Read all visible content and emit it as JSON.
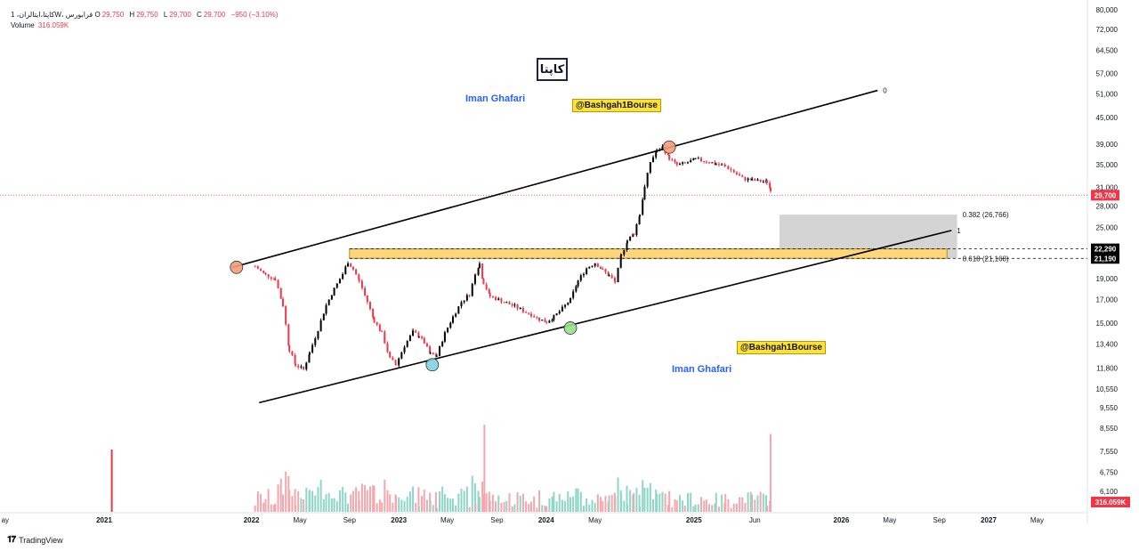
{
  "header": {
    "symbol": "کاپتا،ایتالران، 1W، فرابورس",
    "ohlc": [
      {
        "label": "O",
        "value": "29,750"
      },
      {
        "label": "H",
        "value": "29,750"
      },
      {
        "label": "L",
        "value": "29,700"
      },
      {
        "label": "C",
        "value": "29,700"
      }
    ],
    "change": "−950 (−3.10%)",
    "volume_label": "Volume",
    "volume_value": "316.059K"
  },
  "logo_text": "کاپتا",
  "watermarks": [
    "@Bashgah1Bourse",
    "@Bashgah1Bourse"
  ],
  "authors": [
    "Iman Ghafari",
    "Iman Ghafari"
  ],
  "footer": {
    "brand": "TradingView"
  },
  "colors": {
    "up": "#000000",
    "down": "#f23645",
    "vol_up": "#8fd6c8",
    "vol_down": "#f4a8ae",
    "channel": "#000000",
    "zone": "#ffd77a",
    "fib_box": "#c9c9c9",
    "price_tag": "#f23645"
  },
  "chart_data": {
    "type": "candlestick",
    "scale": "log",
    "price_axis": {
      "ticks": [
        80000,
        72000,
        64500,
        57000,
        51000,
        45000,
        39000,
        35000,
        31000,
        28000,
        25000,
        22290,
        21190,
        19000,
        17000,
        15000,
        13400,
        11800,
        10550,
        9550,
        8550,
        7550,
        6750,
        6100
      ],
      "tick_labels": [
        "80,000",
        "72,000",
        "64,500",
        "57,000",
        "51,000",
        "45,000",
        "39,000",
        "35,000",
        "31,000",
        "28,000",
        "25,000",
        "22,290",
        "21,190",
        "19,000",
        "17,000",
        "15,000",
        "13,400",
        "11,800",
        "10,550",
        "9,550",
        "8,550",
        "7,550",
        "6,750",
        "6,100"
      ],
      "last_price": "29,700",
      "last_volume": "316.059K",
      "zone_labels": [
        "22,290",
        "21,190"
      ]
    },
    "time_axis": {
      "labels": [
        "ay",
        "2021",
        "2022",
        "May",
        "Sep",
        "2023",
        "May",
        "Sep",
        "2024",
        "May",
        "2025",
        "Jun",
        "2026",
        "May",
        "Sep",
        "2027",
        "May"
      ],
      "dates": [
        "2020-05-01",
        "2021-01-01",
        "2022-01-01",
        "2022-05-01",
        "2022-09-01",
        "2023-01-01",
        "2023-05-01",
        "2023-09-01",
        "2024-01-01",
        "2024-05-01",
        "2025-01-01",
        "2025-06-01",
        "2026-01-01",
        "2026-05-01",
        "2026-09-01",
        "2027-01-01",
        "2027-05-01"
      ]
    },
    "price_path": [
      [
        "2022-01-10",
        20300
      ],
      [
        "2022-02-05",
        19400
      ],
      [
        "2022-03-01",
        19000
      ],
      [
        "2022-03-20",
        16500
      ],
      [
        "2022-04-05",
        13000
      ],
      [
        "2022-04-20",
        12000
      ],
      [
        "2022-05-10",
        11700
      ],
      [
        "2022-05-25",
        12800
      ],
      [
        "2022-06-15",
        14500
      ],
      [
        "2022-07-05",
        16500
      ],
      [
        "2022-07-25",
        18000
      ],
      [
        "2022-08-15",
        19500
      ],
      [
        "2022-08-28",
        20800
      ],
      [
        "2022-09-10",
        20000
      ],
      [
        "2022-09-25",
        18800
      ],
      [
        "2022-10-15",
        16800
      ],
      [
        "2022-11-01",
        15200
      ],
      [
        "2022-11-20",
        14200
      ],
      [
        "2022-12-10",
        12400
      ],
      [
        "2022-12-25",
        12000
      ],
      [
        "2023-01-15",
        13300
      ],
      [
        "2023-02-05",
        14300
      ],
      [
        "2023-02-20",
        14000
      ],
      [
        "2023-03-05",
        13500
      ],
      [
        "2023-03-20",
        12700
      ],
      [
        "2023-04-05",
        12600
      ],
      [
        "2023-04-25",
        14200
      ],
      [
        "2023-05-15",
        15500
      ],
      [
        "2023-06-05",
        16800
      ],
      [
        "2023-06-25",
        17500
      ],
      [
        "2023-07-10",
        19600
      ],
      [
        "2023-07-20",
        20600
      ],
      [
        "2023-07-30",
        18600
      ],
      [
        "2023-08-15",
        17300
      ],
      [
        "2023-09-05",
        17000
      ],
      [
        "2023-09-25",
        16700
      ],
      [
        "2023-10-15",
        16400
      ],
      [
        "2023-11-05",
        16000
      ],
      [
        "2023-11-25",
        15700
      ],
      [
        "2023-12-15",
        15300
      ],
      [
        "2024-01-02",
        15100
      ],
      [
        "2024-01-20",
        15500
      ],
      [
        "2024-02-10",
        16200
      ],
      [
        "2024-03-01",
        17000
      ],
      [
        "2024-03-20",
        18800
      ],
      [
        "2024-04-10",
        20100
      ],
      [
        "2024-05-01",
        20700
      ],
      [
        "2024-05-20",
        19900
      ],
      [
        "2024-06-05",
        19300
      ],
      [
        "2024-06-20",
        18700
      ],
      [
        "2024-07-05",
        21500
      ],
      [
        "2024-07-20",
        23300
      ],
      [
        "2024-08-05",
        24200
      ],
      [
        "2024-08-20",
        26800
      ],
      [
        "2024-09-01",
        31000
      ],
      [
        "2024-09-15",
        35500
      ],
      [
        "2024-10-01",
        37600
      ],
      [
        "2024-10-15",
        38400
      ],
      [
        "2024-11-01",
        36200
      ],
      [
        "2024-11-20",
        34900
      ],
      [
        "2024-12-10",
        35200
      ],
      [
        "2025-01-05",
        36000
      ],
      [
        "2025-02-01",
        35600
      ],
      [
        "2025-02-25",
        35100
      ],
      [
        "2025-03-20",
        34700
      ],
      [
        "2025-04-10",
        33600
      ],
      [
        "2025-05-01",
        32500
      ],
      [
        "2025-05-25",
        32200
      ],
      [
        "2025-06-15",
        32000
      ],
      [
        "2025-07-01",
        31900
      ],
      [
        "2025-07-10",
        30650
      ],
      [
        "2025-07-15",
        29700
      ]
    ],
    "volume_spikes": [
      {
        "date": "2021-01-20",
        "value": 1.0,
        "dir": "down"
      },
      {
        "date": "2023-08-01",
        "value": 1.4,
        "dir": "down"
      },
      {
        "date": "2025-07-10",
        "value": 1.25,
        "dir": "down"
      }
    ],
    "channel": {
      "upper": {
        "start": [
          "2021-11-15",
          20200
        ],
        "end": [
          "2026-04-01",
          52000
        ],
        "label": "0"
      },
      "lower": {
        "start": [
          "2022-01-20",
          9800
        ],
        "end": [
          "2026-10-01",
          24600
        ],
        "label": "1"
      }
    },
    "zone": {
      "start": "2022-09-01",
      "end": "2026-09-20",
      "top": 22290,
      "bottom": 21190
    },
    "fib_box": {
      "start": "2025-08-01",
      "end": "2026-10-15",
      "top": 26766,
      "bottom": 21168
    },
    "fib_labels": [
      "0.382 (26,766)",
      "0.618 (21,168)"
    ],
    "pivots": [
      {
        "date": "2021-11-25",
        "price": 20200,
        "color": "#f29d7a"
      },
      {
        "date": "2024-11-01",
        "price": 38400,
        "color": "#f29d7a"
      },
      {
        "date": "2023-03-25",
        "price": 12000,
        "color": "#7fd3e0"
      },
      {
        "date": "2024-03-01",
        "price": 14600,
        "color": "#98e08a"
      }
    ]
  }
}
